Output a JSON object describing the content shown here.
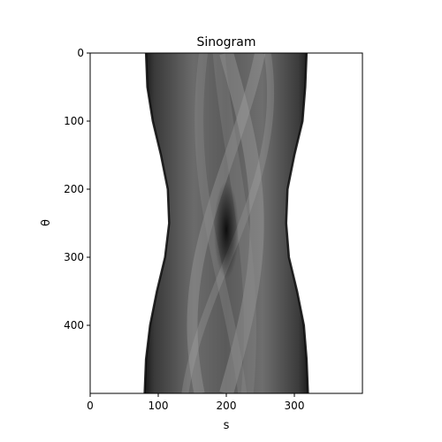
{
  "chart_data": {
    "type": "heatmap",
    "title": "Sinogram",
    "xlabel": "s",
    "ylabel": "θ",
    "xlim": [
      0,
      400
    ],
    "ylim": [
      500,
      0
    ],
    "xticks": [
      0,
      100,
      200,
      300
    ],
    "yticks": [
      0,
      100,
      200,
      300,
      400
    ],
    "colormap": "gray",
    "grid": false,
    "legend": "none",
    "support_edges": {
      "theta": [
        0,
        50,
        100,
        150,
        200,
        250,
        300,
        350,
        400,
        450,
        500
      ],
      "left_s": [
        82,
        84,
        92,
        104,
        114,
        116,
        110,
        98,
        88,
        82,
        80
      ],
      "right_s": [
        318,
        316,
        312,
        300,
        290,
        288,
        292,
        304,
        314,
        318,
        320
      ]
    },
    "dark_core": {
      "s": 200,
      "theta": 260
    }
  }
}
